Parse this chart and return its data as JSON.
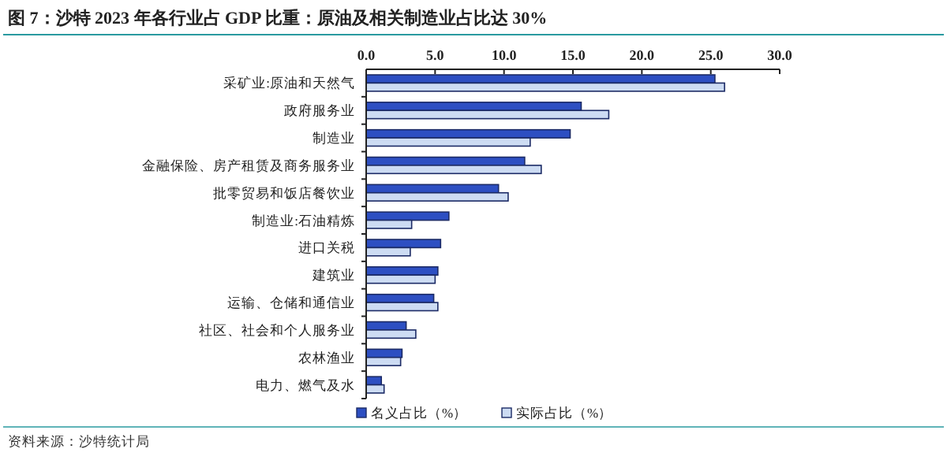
{
  "chart_data": {
    "type": "bar",
    "orientation": "horizontal",
    "title": "图 7：沙特 2023 年各行业占 GDP 比重：原油及相关制造业占比达 30%",
    "categories": [
      "采矿业:原油和天然气",
      "政府服务业",
      "制造业",
      "金融保险、房产租赁及商务服务业",
      "批零贸易和饭店餐饮业",
      "制造业:石油精炼",
      "进口关税",
      "建筑业",
      "运输、仓储和通信业",
      "社区、社会和个人服务业",
      "农林渔业",
      "电力、燃气及水"
    ],
    "series": [
      {
        "name": "名义占比（%）",
        "color": "#2d4fc2",
        "values": [
          25.3,
          15.6,
          14.8,
          11.5,
          9.6,
          6.0,
          5.4,
          5.2,
          4.9,
          2.9,
          2.6,
          1.1
        ]
      },
      {
        "name": "实际占比（%）",
        "color": "#cddcf3",
        "values": [
          26.0,
          17.6,
          11.9,
          12.7,
          10.3,
          3.3,
          3.2,
          5.0,
          5.2,
          3.6,
          2.5,
          1.3
        ]
      }
    ],
    "xlim": [
      0,
      30
    ],
    "xticks": [
      {
        "value": 0,
        "label": "0.0"
      },
      {
        "value": 5,
        "label": "5.0"
      },
      {
        "value": 10,
        "label": "10.0"
      },
      {
        "value": 15,
        "label": "15.0"
      },
      {
        "value": 20,
        "label": "20.0"
      },
      {
        "value": 25,
        "label": "25.0"
      },
      {
        "value": 30,
        "label": "30.0"
      }
    ],
    "legend": "bottom",
    "annotations": [
      "资料来源：沙特统计局"
    ]
  }
}
